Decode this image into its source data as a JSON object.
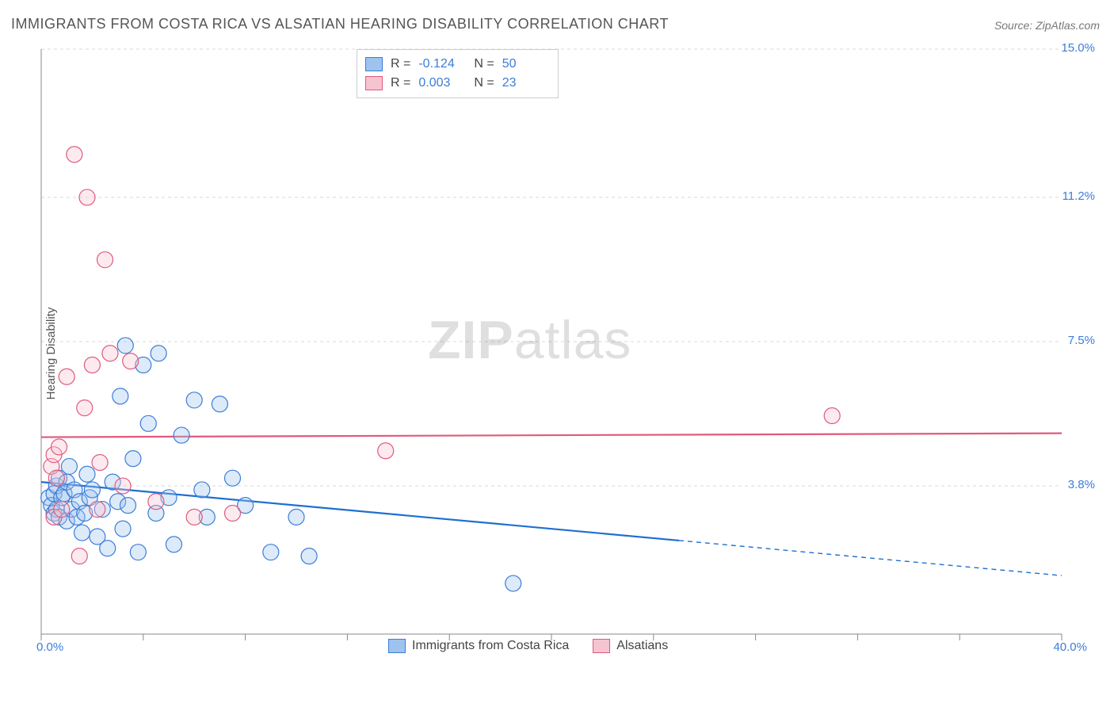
{
  "title": "IMMIGRANTS FROM COSTA RICA VS ALSATIAN HEARING DISABILITY CORRELATION CHART",
  "source": "Source: ZipAtlas.com",
  "ylabel": "Hearing Disability",
  "watermark_zip": "ZIP",
  "watermark_atlas": "atlas",
  "chart": {
    "type": "scatter",
    "background_color": "#ffffff",
    "grid_color": "#d9d9d9",
    "axis_color": "#888888",
    "tick_color": "#888888",
    "tick_label_color": "#3b7dd8",
    "label_fontsize": 15,
    "title_fontsize": 18,
    "marker_radius": 10,
    "marker_stroke_width": 1.2,
    "marker_fill_opacity": 0.35,
    "xlim": [
      0.0,
      40.0
    ],
    "ylim": [
      0.0,
      15.0
    ],
    "y_ticks": [
      3.8,
      7.5,
      11.2,
      15.0
    ],
    "y_tick_labels": [
      "3.8%",
      "7.5%",
      "11.2%",
      "15.0%"
    ],
    "x_ticks": [
      0.0,
      4.0,
      8.0,
      12.0,
      16.0,
      20.0,
      24.0,
      28.0,
      32.0,
      36.0,
      40.0
    ],
    "x_start_label": "0.0%",
    "x_end_label": "40.0%",
    "grid_dash": "4 4",
    "trend_line_width": 2.2,
    "series": [
      {
        "name": "Immigrants from Costa Rica",
        "key": "costa_rica",
        "marker_fill": "#9dc3ee",
        "marker_stroke": "#3b7dd8",
        "line_color": "#1f6fd0",
        "R": "-0.124",
        "N": "50",
        "trend": {
          "x1": 0.0,
          "y1": 3.9,
          "x2": 25.0,
          "y2": 2.4,
          "dash_x2": 40.0,
          "dash_y2": 1.5
        },
        "points": [
          [
            0.3,
            3.5
          ],
          [
            0.4,
            3.3
          ],
          [
            0.5,
            3.6
          ],
          [
            0.5,
            3.1
          ],
          [
            0.6,
            3.8
          ],
          [
            0.6,
            3.2
          ],
          [
            0.7,
            4.0
          ],
          [
            0.7,
            3.0
          ],
          [
            0.8,
            3.5
          ],
          [
            0.9,
            3.6
          ],
          [
            1.0,
            2.9
          ],
          [
            1.0,
            3.9
          ],
          [
            1.1,
            4.3
          ],
          [
            1.2,
            3.2
          ],
          [
            1.3,
            3.7
          ],
          [
            1.4,
            3.0
          ],
          [
            1.5,
            3.4
          ],
          [
            1.6,
            2.6
          ],
          [
            1.7,
            3.1
          ],
          [
            1.8,
            4.1
          ],
          [
            1.9,
            3.5
          ],
          [
            2.0,
            3.7
          ],
          [
            2.2,
            2.5
          ],
          [
            2.4,
            3.2
          ],
          [
            2.6,
            2.2
          ],
          [
            2.8,
            3.9
          ],
          [
            3.0,
            3.4
          ],
          [
            3.1,
            6.1
          ],
          [
            3.2,
            2.7
          ],
          [
            3.3,
            7.4
          ],
          [
            3.4,
            3.3
          ],
          [
            3.6,
            4.5
          ],
          [
            3.8,
            2.1
          ],
          [
            4.0,
            6.9
          ],
          [
            4.2,
            5.4
          ],
          [
            4.5,
            3.1
          ],
          [
            4.6,
            7.2
          ],
          [
            5.0,
            3.5
          ],
          [
            5.2,
            2.3
          ],
          [
            5.5,
            5.1
          ],
          [
            6.0,
            6.0
          ],
          [
            6.3,
            3.7
          ],
          [
            6.5,
            3.0
          ],
          [
            7.0,
            5.9
          ],
          [
            7.5,
            4.0
          ],
          [
            8.0,
            3.3
          ],
          [
            9.0,
            2.1
          ],
          [
            10.0,
            3.0
          ],
          [
            10.5,
            2.0
          ],
          [
            18.5,
            1.3
          ]
        ]
      },
      {
        "name": "Alsatians",
        "key": "alsatians",
        "marker_fill": "#f6c3d0",
        "marker_stroke": "#e05a7d",
        "line_color": "#e05a7d",
        "R": "0.003",
        "N": "23",
        "trend": {
          "x1": 0.0,
          "y1": 5.05,
          "x2": 40.0,
          "y2": 5.15
        },
        "points": [
          [
            0.4,
            4.3
          ],
          [
            0.5,
            4.6
          ],
          [
            0.5,
            3.0
          ],
          [
            0.6,
            4.0
          ],
          [
            0.7,
            4.8
          ],
          [
            0.8,
            3.2
          ],
          [
            1.0,
            6.6
          ],
          [
            1.3,
            12.3
          ],
          [
            1.5,
            2.0
          ],
          [
            1.7,
            5.8
          ],
          [
            1.8,
            11.2
          ],
          [
            2.0,
            6.9
          ],
          [
            2.2,
            3.2
          ],
          [
            2.3,
            4.4
          ],
          [
            2.5,
            9.6
          ],
          [
            2.7,
            7.2
          ],
          [
            3.2,
            3.8
          ],
          [
            3.5,
            7.0
          ],
          [
            4.5,
            3.4
          ],
          [
            6.0,
            3.0
          ],
          [
            7.5,
            3.1
          ],
          [
            13.5,
            4.7
          ],
          [
            31.0,
            5.6
          ]
        ]
      }
    ],
    "legend_top": {
      "R_label": "R =",
      "N_label": "N ="
    },
    "legend_bottom": [
      {
        "swatch_fill": "#9dc3ee",
        "swatch_stroke": "#3b7dd8",
        "label": "Immigrants from Costa Rica"
      },
      {
        "swatch_fill": "#f6c3d0",
        "swatch_stroke": "#e05a7d",
        "label": "Alsatians"
      }
    ]
  }
}
